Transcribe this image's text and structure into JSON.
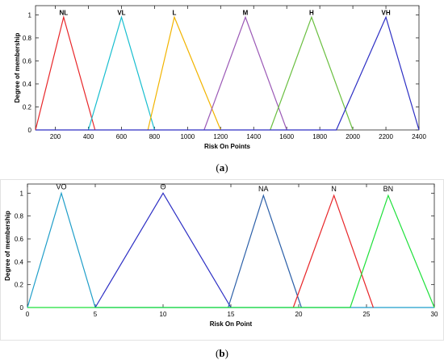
{
  "chart_data": [
    {
      "type": "line",
      "caption_prefix": "(",
      "caption_letter": "a",
      "caption_suffix": ")",
      "xlabel": "Risk On Points",
      "ylabel": "Degree of membership",
      "xlim": [
        80,
        2400
      ],
      "ylim": [
        0,
        1.08
      ],
      "xticks": [
        "200",
        "400",
        "600",
        "800",
        "1000",
        "1200",
        "1400",
        "1600",
        "1800",
        "2000",
        "2200",
        "2400"
      ],
      "xtick_values": [
        200,
        400,
        600,
        800,
        1000,
        1200,
        1400,
        1600,
        1800,
        2000,
        2200,
        2400
      ],
      "yticks": [
        "0",
        "0.2",
        "0.4",
        "0.6",
        "0.8",
        "1"
      ],
      "ytick_values": [
        0,
        0.2,
        0.4,
        0.6,
        0.8,
        1
      ],
      "series": [
        {
          "name": "NL",
          "color": "#e8272a",
          "x": [
            80,
            250,
            440
          ],
          "y": [
            0,
            0.98,
            0
          ]
        },
        {
          "name": "VL",
          "color": "#17becf",
          "x": [
            400,
            600,
            800
          ],
          "y": [
            0,
            0.98,
            0
          ]
        },
        {
          "name": "L",
          "color": "#f2b400",
          "x": [
            760,
            920,
            1200
          ],
          "y": [
            0,
            0.98,
            0
          ]
        },
        {
          "name": "M",
          "color": "#9b59b6",
          "x": [
            1100,
            1350,
            1600
          ],
          "y": [
            0,
            0.98,
            0
          ]
        },
        {
          "name": "H",
          "color": "#6abf40",
          "x": [
            1500,
            1750,
            2000
          ],
          "y": [
            0,
            0.98,
            0
          ]
        },
        {
          "name": "VH",
          "color": "#2d2fc4",
          "x": [
            80,
            1900,
            2200,
            2400
          ],
          "y": [
            0,
            0,
            0.98,
            0
          ]
        }
      ]
    },
    {
      "type": "line",
      "caption_prefix": "(",
      "caption_letter": "b",
      "caption_suffix": ")",
      "xlabel": "Risk On Point",
      "ylabel": "Degree of membership",
      "xlim": [
        0,
        30
      ],
      "ylim": [
        0,
        1.08
      ],
      "xticks": [
        "0",
        "5",
        "10",
        "15",
        "20",
        "25",
        "30"
      ],
      "xtick_values": [
        0,
        5,
        10,
        15,
        20,
        25,
        30
      ],
      "yticks": [
        "0",
        "0.2",
        "0.4",
        "0.6",
        "0.8",
        "1"
      ],
      "ytick_values": [
        0,
        0.2,
        0.4,
        0.6,
        0.8,
        1
      ],
      "series": [
        {
          "name": "VO",
          "color": "#1f9ec9",
          "x": [
            0,
            2.5,
            5,
            30
          ],
          "y": [
            0,
            1,
            0,
            0
          ]
        },
        {
          "name": "O",
          "color": "#2d2fc4",
          "x": [
            5,
            10,
            15
          ],
          "y": [
            0,
            1,
            0
          ]
        },
        {
          "name": "NA",
          "color": "#2b5fa8",
          "x": [
            14.8,
            17.4,
            20.2
          ],
          "y": [
            0,
            0.98,
            0
          ]
        },
        {
          "name": "N",
          "color": "#e8272a",
          "x": [
            19.6,
            22.6,
            25.5
          ],
          "y": [
            0,
            0.98,
            0
          ]
        },
        {
          "name": "BN",
          "color": "#1ee03a",
          "x": [
            0,
            23.8,
            26.6,
            30
          ],
          "y": [
            0,
            0,
            0.98,
            0
          ]
        }
      ]
    }
  ]
}
